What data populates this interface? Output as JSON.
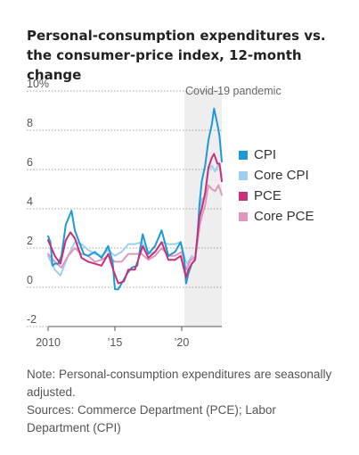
{
  "title": "Personal-consumption expenditures vs. the consumer-price index, 12-month change",
  "notes": {
    "note": "Note: Personal-consumption expenditures are seasonally adjusted.",
    "sources": "Sources: Commerce Department (PCE); Labor Department (CPI)"
  },
  "chart_data": {
    "type": "line",
    "title": "Personal-consumption expenditures vs. the consumer-price index, 12-month change",
    "xlabel": "",
    "ylabel": "",
    "xlim": [
      2010.0,
      2023.0
    ],
    "ylim": [
      -2,
      10
    ],
    "yticks": [
      -2,
      0,
      2,
      4,
      6,
      8,
      10
    ],
    "ytick_labels": [
      "-2",
      "0",
      "2",
      "4",
      "6",
      "8",
      "10%"
    ],
    "xticks": [
      2010,
      2015,
      2020
    ],
    "xtick_labels": [
      "2010",
      "’15",
      "’20"
    ],
    "grid": "horizontal",
    "legend_position": "right",
    "annotation": {
      "label": "Covid-19 pandemic",
      "x_start": 2020.2,
      "x_end": 2023.0,
      "color": "#eeeeef"
    },
    "series": [
      {
        "name": "CPI",
        "color": "#1d9ad6",
        "x": [
          2010.0,
          2010.17,
          2010.33,
          2010.5,
          2010.75,
          2011.0,
          2011.33,
          2011.75,
          2012.0,
          2012.33,
          2012.67,
          2013.0,
          2013.5,
          2014.0,
          2014.5,
          2014.83,
          2015.0,
          2015.25,
          2015.5,
          2015.92,
          2016.25,
          2016.67,
          2017.08,
          2017.5,
          2018.0,
          2018.5,
          2019.0,
          2019.5,
          2019.92,
          2020.17,
          2020.33,
          2020.5,
          2020.75,
          2021.0,
          2021.17,
          2021.33,
          2021.5,
          2021.75,
          2022.0,
          2022.25,
          2022.42,
          2022.67,
          2022.83,
          2023.0
        ],
        "values": [
          2.6,
          2.3,
          1.1,
          1.2,
          1.2,
          1.6,
          3.2,
          3.9,
          2.9,
          2.3,
          1.7,
          1.6,
          1.8,
          1.5,
          2.1,
          1.3,
          -0.1,
          -0.1,
          0.2,
          0.7,
          1.0,
          1.1,
          2.7,
          1.7,
          2.1,
          2.9,
          1.6,
          1.8,
          2.3,
          1.5,
          0.2,
          0.7,
          1.2,
          1.4,
          2.6,
          4.2,
          5.4,
          6.2,
          7.5,
          8.3,
          9.1,
          8.3,
          7.7,
          6.4
        ]
      },
      {
        "name": "Core CPI",
        "color": "#9dd0ee",
        "x": [
          2010.0,
          2010.5,
          2010.92,
          2011.5,
          2012.0,
          2012.5,
          2013.0,
          2013.5,
          2014.0,
          2014.5,
          2015.0,
          2015.5,
          2016.0,
          2016.5,
          2017.0,
          2017.5,
          2018.0,
          2018.5,
          2019.0,
          2019.5,
          2019.92,
          2020.25,
          2020.42,
          2020.75,
          2021.0,
          2021.33,
          2021.5,
          2021.75,
          2022.0,
          2022.25,
          2022.5,
          2022.75,
          2023.0
        ],
        "values": [
          1.6,
          0.9,
          0.6,
          1.6,
          2.3,
          2.2,
          1.9,
          1.7,
          1.6,
          1.9,
          1.6,
          1.8,
          2.2,
          2.2,
          2.3,
          1.7,
          1.8,
          2.3,
          2.2,
          2.2,
          2.3,
          1.4,
          1.2,
          1.6,
          1.4,
          3.0,
          4.5,
          4.6,
          6.0,
          6.2,
          5.9,
          6.3,
          5.7
        ]
      },
      {
        "name": "PCE",
        "color": "#c8307a",
        "x": [
          2010.0,
          2010.5,
          2010.92,
          2011.33,
          2011.67,
          2012.0,
          2012.5,
          2013.0,
          2013.5,
          2014.0,
          2014.5,
          2014.92,
          2015.25,
          2015.67,
          2016.0,
          2016.5,
          2017.08,
          2017.5,
          2018.0,
          2018.5,
          2019.0,
          2019.5,
          2019.92,
          2020.33,
          2020.5,
          2020.75,
          2021.0,
          2021.33,
          2021.5,
          2021.75,
          2022.0,
          2022.25,
          2022.42,
          2022.67,
          2022.83,
          2023.0
        ],
        "values": [
          2.4,
          1.6,
          1.2,
          2.4,
          2.8,
          2.5,
          1.5,
          1.3,
          1.2,
          1.1,
          1.7,
          0.8,
          0.2,
          0.3,
          0.9,
          0.9,
          2.1,
          1.5,
          1.8,
          2.3,
          1.4,
          1.4,
          1.6,
          0.5,
          0.9,
          1.2,
          1.4,
          3.6,
          4.0,
          4.8,
          6.1,
          6.6,
          6.8,
          6.3,
          6.3,
          5.4
        ]
      },
      {
        "name": "Core PCE",
        "color": "#e296bd",
        "x": [
          2010.0,
          2010.5,
          2011.0,
          2011.5,
          2012.0,
          2012.5,
          2013.0,
          2013.5,
          2014.0,
          2014.5,
          2015.0,
          2015.5,
          2016.0,
          2016.5,
          2017.0,
          2017.5,
          2018.0,
          2018.5,
          2019.0,
          2019.5,
          2020.0,
          2020.33,
          2020.67,
          2021.0,
          2021.33,
          2021.5,
          2021.75,
          2022.0,
          2022.25,
          2022.5,
          2022.75,
          2023.0
        ],
        "values": [
          1.7,
          1.3,
          1.0,
          1.6,
          2.0,
          1.7,
          1.6,
          1.3,
          1.4,
          1.6,
          1.3,
          1.3,
          1.7,
          1.7,
          1.7,
          1.4,
          1.6,
          2.0,
          1.6,
          1.6,
          1.8,
          0.9,
          1.4,
          1.5,
          3.1,
          3.6,
          4.2,
          5.2,
          5.0,
          4.9,
          5.2,
          4.7
        ]
      }
    ]
  }
}
